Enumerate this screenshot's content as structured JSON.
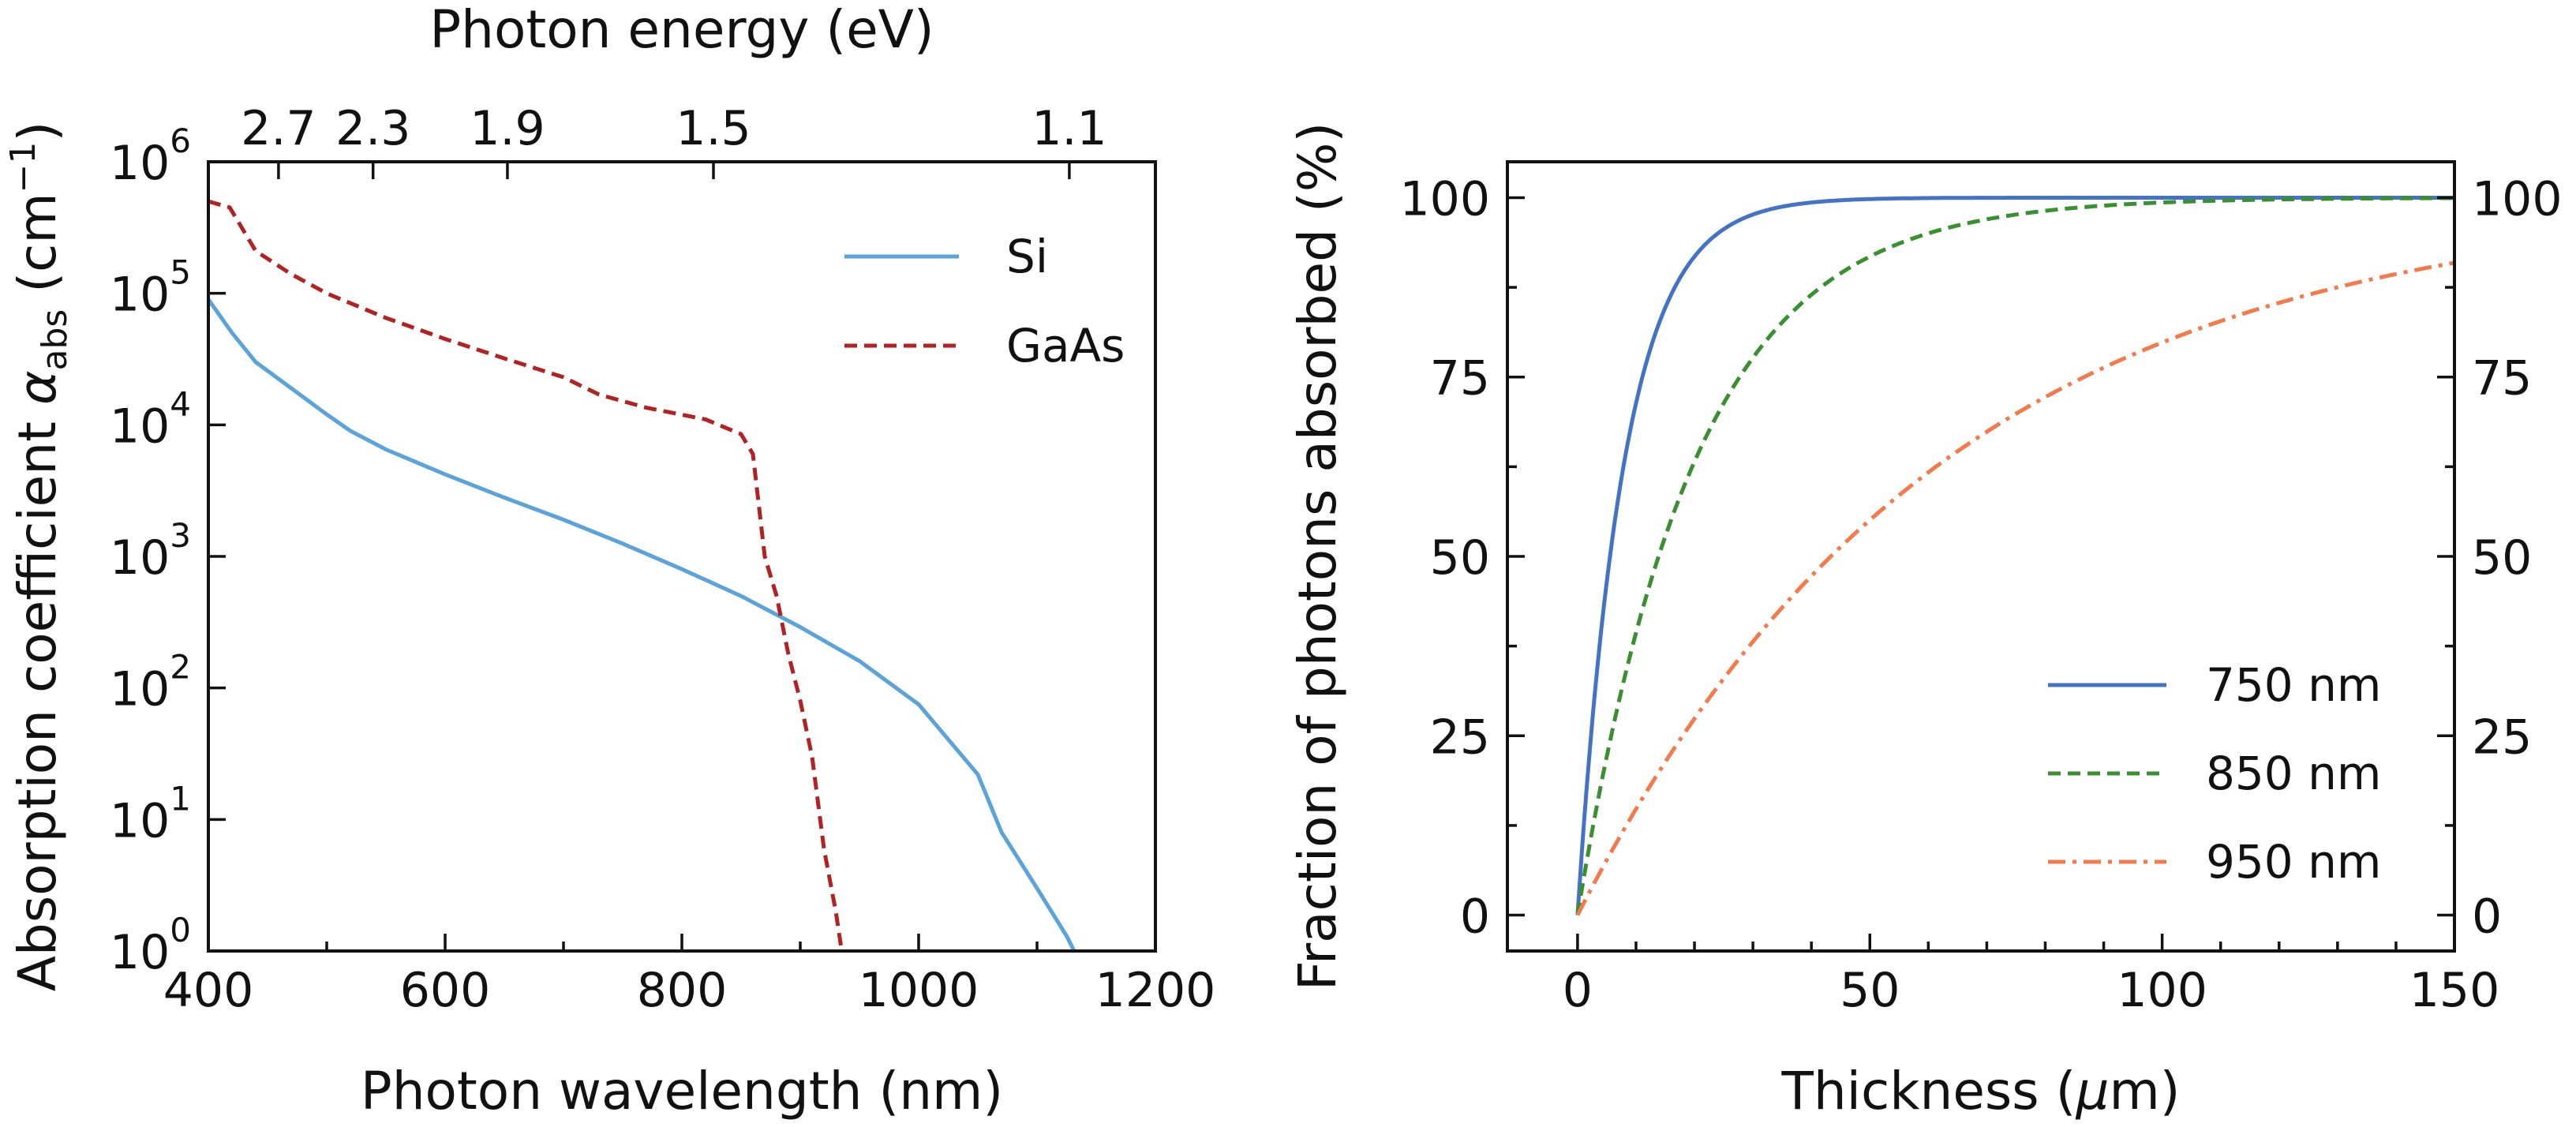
{
  "chart_data": [
    {
      "type": "line",
      "yscale": "log",
      "xlabel": "Photon wavelength (nm)",
      "ylabel": "Absorption coefficient α_abs (cm⁻¹)",
      "ylabel_parts": {
        "pre": "Absorption coefficient ",
        "symbol": "α",
        "sub": "abs",
        "unit_pre": " (cm",
        "sup": "−1",
        "unit_post": ")"
      },
      "top_axis_label": "Photon energy (eV)",
      "xlim": [
        400,
        1200
      ],
      "ylim": [
        1,
        1000000
      ],
      "x_ticks": [
        "400",
        "600",
        "800",
        "1000",
        "1200"
      ],
      "y_tick_base": "10",
      "y_tick_exponents": [
        "0",
        "1",
        "2",
        "3",
        "4",
        "5",
        "6"
      ],
      "top_ticks": [
        {
          "label": "2.7",
          "value": 2.7
        },
        {
          "label": "2.3",
          "value": 2.3
        },
        {
          "label": "1.9",
          "value": 1.9
        },
        {
          "label": "1.5",
          "value": 1.5
        },
        {
          "label": "1.1",
          "value": 1.1
        }
      ],
      "legend": "top-right",
      "grid": false,
      "series": [
        {
          "name": "Si",
          "color": "#5ba3d9",
          "dash": "solid",
          "points": [
            [
              400,
              90000
            ],
            [
              420,
              50000
            ],
            [
              440,
              30000
            ],
            [
              470,
              19000
            ],
            [
              500,
              12000
            ],
            [
              520,
              9000
            ],
            [
              550,
              6500
            ],
            [
              600,
              4200
            ],
            [
              650,
              2800
            ],
            [
              700,
              1900
            ],
            [
              750,
              1250
            ],
            [
              800,
              800
            ],
            [
              850,
              500
            ],
            [
              900,
              290
            ],
            [
              950,
              160
            ],
            [
              1000,
              75
            ],
            [
              1050,
              22
            ],
            [
              1070,
              8
            ],
            [
              1100,
              3
            ],
            [
              1125,
              1.3
            ],
            [
              1140,
              0.7
            ]
          ]
        },
        {
          "name": "GaAs",
          "color": "#b22222",
          "dash": "dashed",
          "points": [
            [
              400,
              500000
            ],
            [
              418,
              450000
            ],
            [
              440,
              210000
            ],
            [
              470,
              140000
            ],
            [
              500,
              100000
            ],
            [
              550,
              65000
            ],
            [
              600,
              45000
            ],
            [
              650,
              32000
            ],
            [
              700,
              23000
            ],
            [
              730,
              17000
            ],
            [
              770,
              13500
            ],
            [
              820,
              11000
            ],
            [
              850,
              8500
            ],
            [
              860,
              6000
            ],
            [
              870,
              1000
            ],
            [
              880,
              500
            ],
            [
              890,
              180
            ],
            [
              900,
              80
            ],
            [
              910,
              30
            ],
            [
              920,
              6
            ],
            [
              930,
              2
            ],
            [
              935,
              1
            ]
          ]
        }
      ]
    },
    {
      "type": "line",
      "xlabel": "Thickness (μm)",
      "xlabel_parts": {
        "pre": "Thickness (",
        "symbol": "μ",
        "post": "m)"
      },
      "ylabel": "Fraction of photons absorbed (%)",
      "xlim": [
        0,
        150
      ],
      "ylim": [
        0,
        100
      ],
      "x_ticks": [
        "0",
        "50",
        "100",
        "150"
      ],
      "y_ticks": [
        "0",
        "25",
        "50",
        "75",
        "100"
      ],
      "right_y_ticks": [
        "0",
        "25",
        "50",
        "75",
        "100"
      ],
      "legend": "bottom-right",
      "grid": false,
      "series": [
        {
          "name": "750 nm",
          "color": "#4472c4",
          "dash": "solid",
          "absorption_coefficient_per_um": 0.125
        },
        {
          "name": "850 nm",
          "color": "#3a8f30",
          "dash": "dashed",
          "absorption_coefficient_per_um": 0.05
        },
        {
          "name": "950 nm",
          "color": "#f37a4a",
          "dash": "dashdot",
          "absorption_coefficient_per_um": 0.016
        }
      ]
    }
  ]
}
